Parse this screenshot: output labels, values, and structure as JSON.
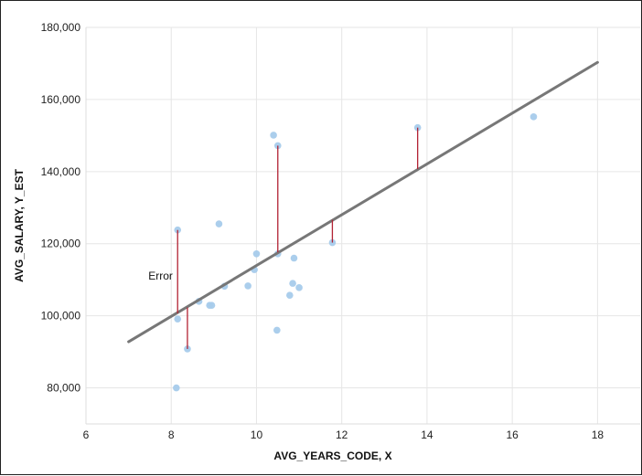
{
  "chart_data": {
    "type": "scatter",
    "xlabel": "AVG_YEARS_CODE, X",
    "ylabel": "AVG_SALARY, Y_EST",
    "xlim": [
      6,
      19
    ],
    "ylim": [
      70000,
      180000
    ],
    "x_ticks": [
      6,
      8,
      10,
      12,
      14,
      16,
      18
    ],
    "y_ticks": [
      80000,
      100000,
      120000,
      140000,
      160000,
      180000
    ],
    "x_tick_labels": [
      "6",
      "8",
      "10",
      "12",
      "14",
      "16",
      "18"
    ],
    "y_tick_labels": [
      "80,000",
      "100,000",
      "120,000",
      "140,000",
      "160,000",
      "180,000"
    ],
    "grid": true,
    "colors": {
      "points": "#a6cbeb",
      "regression": "#777777",
      "error": "#b22233"
    },
    "points": [
      {
        "x": 8.15,
        "y": 123800
      },
      {
        "x": 8.15,
        "y": 99100
      },
      {
        "x": 8.12,
        "y": 80000
      },
      {
        "x": 8.38,
        "y": 90800
      },
      {
        "x": 8.65,
        "y": 104000
      },
      {
        "x": 8.9,
        "y": 102900
      },
      {
        "x": 8.95,
        "y": 102900
      },
      {
        "x": 9.12,
        "y": 125500
      },
      {
        "x": 9.25,
        "y": 108200
      },
      {
        "x": 9.8,
        "y": 108300
      },
      {
        "x": 9.95,
        "y": 112800
      },
      {
        "x": 10.0,
        "y": 117200
      },
      {
        "x": 10.4,
        "y": 150100
      },
      {
        "x": 10.5,
        "y": 147200
      },
      {
        "x": 10.5,
        "y": 117200
      },
      {
        "x": 10.48,
        "y": 96000
      },
      {
        "x": 10.78,
        "y": 105700
      },
      {
        "x": 10.85,
        "y": 109000
      },
      {
        "x": 10.88,
        "y": 116000
      },
      {
        "x": 11.0,
        "y": 107800
      },
      {
        "x": 11.78,
        "y": 120300
      },
      {
        "x": 13.78,
        "y": 152200
      },
      {
        "x": 16.5,
        "y": 155200
      }
    ],
    "regression_line": {
      "x1": 7.0,
      "y1": 92800,
      "x2": 18.0,
      "y2": 170300
    },
    "error_segments": [
      {
        "x": 8.15,
        "y_point": 123800,
        "y_fit": 100700
      },
      {
        "x": 8.38,
        "y_point": 90800,
        "y_fit": 102300
      },
      {
        "x": 10.5,
        "y_point": 147200,
        "y_fit": 117600
      },
      {
        "x": 11.78,
        "y_point": 120300,
        "y_fit": 126600
      },
      {
        "x": 13.78,
        "y_point": 152200,
        "y_fit": 140700
      }
    ],
    "annotations": [
      {
        "text": "Error",
        "x": 7.75,
        "y": 111000
      }
    ]
  }
}
